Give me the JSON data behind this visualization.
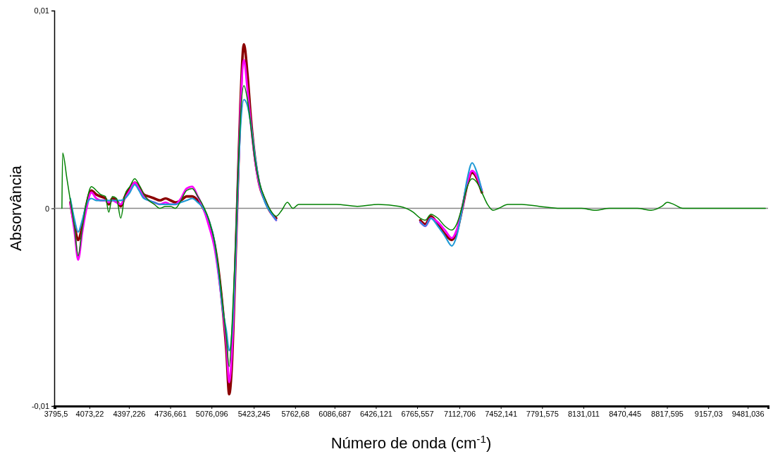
{
  "chart_data": {
    "type": "line",
    "xlabel": "Número de onda (cm$^{-1}$)",
    "ylabel": "Absorvância",
    "x": [
      3847,
      3853,
      3888,
      3916,
      3951,
      3980,
      4014,
      4049,
      4089,
      4129,
      4164,
      4204,
      4232,
      4261,
      4296,
      4330,
      4365,
      4405,
      4445,
      4480,
      4520,
      4560,
      4606,
      4652,
      4698,
      4739,
      4779,
      4825,
      4871,
      4917,
      4963,
      5009,
      5055,
      5101,
      5135,
      5170,
      5198,
      5221,
      5244,
      5267,
      5290,
      5313,
      5342,
      5371,
      5400,
      5434,
      5469,
      5515,
      5561,
      5607,
      5653,
      5699,
      5745,
      5791,
      5929,
      6101,
      6274,
      6446,
      6619,
      6734,
      6791,
      6832,
      6878,
      6935,
      6993,
      7050,
      7090,
      7136,
      7177,
      7217,
      7257,
      7297,
      7343,
      7389,
      7435,
      7510,
      7625,
      7769,
      7941,
      8114,
      8229,
      8344,
      8459,
      8574,
      8689,
      8775,
      8821,
      8873,
      8947,
      9091,
      9264,
      9436,
      9626
    ],
    "xlim": [
      3784,
      9648
    ],
    "xticks": [
      {
        "value": 3795.5,
        "label": "3795,5"
      },
      {
        "value": 4073.22,
        "label": "4073,22"
      },
      {
        "value": 4397.226,
        "label": "4397,226"
      },
      {
        "value": 4736.661,
        "label": "4736,661"
      },
      {
        "value": 5076.096,
        "label": "5076,096"
      },
      {
        "value": 5423.245,
        "label": "5423,245"
      },
      {
        "value": 5762.68,
        "label": "5762,68"
      },
      {
        "value": 6086.687,
        "label": "6086,687"
      },
      {
        "value": 6426.121,
        "label": "6426,121"
      },
      {
        "value": 6765.557,
        "label": "6765,557"
      },
      {
        "value": 7112.706,
        "label": "7112,706"
      },
      {
        "value": 7452.141,
        "label": "7452,141"
      },
      {
        "value": 7791.575,
        "label": "7791,575"
      },
      {
        "value": 8131.011,
        "label": "8131,011"
      },
      {
        "value": 8470.445,
        "label": "8470,445"
      },
      {
        "value": 8817.595,
        "label": "8817,595"
      },
      {
        "value": 9157.03,
        "label": "9157,03"
      },
      {
        "value": 9481.036,
        "label": "9481,036"
      }
    ],
    "ylim": [
      -0.01,
      0.01
    ],
    "yticks": [
      {
        "value": -0.01,
        "label": "-0,01"
      },
      {
        "value": 0,
        "label": "0"
      },
      {
        "value": 0.01,
        "label": "0,01"
      }
    ],
    "ref_lines": [
      {
        "axis": "y",
        "value": 0,
        "color": "#888888"
      }
    ],
    "marker": "none",
    "line_style": "solid",
    "series": [
      {
        "color": "#8b0000",
        "values": [
          null,
          null,
          null,
          0.0003,
          -0.0009,
          -0.0016,
          -0.0009,
          0.0002,
          0.0009,
          0.0007,
          0.0006,
          0.0005,
          0.0002,
          0.0005,
          0.0004,
          0.0001,
          0.0006,
          0.001,
          0.0013,
          0.0011,
          0.0007,
          0.0006,
          0.0005,
          0.0004,
          0.0005,
          0.0004,
          0.0003,
          0.0004,
          0.0006,
          0.0006,
          0.0004,
          0,
          -0.0007,
          -0.0018,
          -0.0032,
          -0.0052,
          -0.0072,
          -0.0094,
          -0.0078,
          -0.0038,
          0.0008,
          0.0052,
          0.0083,
          0.0068,
          0.0045,
          0.0025,
          0.0012,
          0.0004,
          -0.0002,
          -0.0005,
          null,
          null,
          null,
          null,
          null,
          null,
          null,
          null,
          null,
          null,
          -0.0006,
          -0.0008,
          -0.0004,
          -0.0008,
          -0.0013,
          -0.0016,
          -0.0012,
          0,
          0.0012,
          0.0018,
          0.0015,
          0.0008,
          null,
          null,
          null,
          null,
          null,
          null,
          null,
          null,
          null,
          null,
          null,
          null,
          null,
          null,
          null,
          null,
          null,
          null,
          null,
          null,
          null
        ]
      },
      {
        "color": "#ff00ff",
        "values": [
          null,
          null,
          null,
          0.0003,
          -0.0012,
          -0.0026,
          -0.0012,
          0,
          0.0008,
          0.0005,
          0.0004,
          0.0004,
          0.0003,
          0.0004,
          0.0003,
          0.0002,
          0.0005,
          0.0009,
          0.0013,
          0.001,
          0.0006,
          0.0004,
          0.0003,
          0.0002,
          0.0003,
          0.0002,
          0.0002,
          0.0005,
          0.001,
          0.0011,
          0.0006,
          0,
          -0.0009,
          -0.002,
          -0.0034,
          -0.0052,
          -0.0068,
          -0.0088,
          -0.0072,
          -0.0035,
          0.0008,
          0.0048,
          0.0075,
          0.006,
          0.0042,
          0.0024,
          0.0012,
          0.0004,
          -0.0002,
          -0.0006,
          null,
          null,
          null,
          null,
          null,
          null,
          null,
          null,
          null,
          null,
          -0.0007,
          -0.0009,
          -0.0005,
          -0.0007,
          -0.0011,
          -0.0015,
          -0.0011,
          0,
          0.0013,
          0.0019,
          0.0016,
          0.0009,
          null,
          null,
          null,
          null,
          null,
          null,
          null,
          null,
          null,
          null,
          null,
          null,
          null,
          null,
          null,
          null,
          null,
          null,
          null,
          null,
          null
        ]
      },
      {
        "color": "#1f9ad6",
        "values": [
          null,
          null,
          null,
          0.0005,
          -0.0006,
          -0.0012,
          -0.0006,
          0.0002,
          0.0005,
          0.0004,
          0.0004,
          0.0004,
          0.0004,
          0.0004,
          0.0004,
          0.0004,
          0.0005,
          0.0008,
          0.0012,
          0.0009,
          0.0005,
          0.0004,
          0.0003,
          0.0002,
          0.0002,
          0.0002,
          0.0002,
          0.0003,
          0.0004,
          0.0005,
          0.0003,
          0,
          -0.0006,
          -0.0017,
          -0.0033,
          -0.0052,
          -0.0062,
          -0.0072,
          -0.0063,
          -0.0034,
          0.0007,
          0.004,
          0.0055,
          0.0052,
          0.0042,
          0.0026,
          0.0013,
          0.0003,
          -0.0002,
          -0.0006,
          null,
          null,
          null,
          null,
          null,
          null,
          null,
          null,
          null,
          null,
          -0.0007,
          -0.0009,
          -0.0005,
          -0.0009,
          -0.0014,
          -0.0019,
          -0.0014,
          0,
          0.0015,
          0.0023,
          0.0018,
          0.0009,
          null,
          null,
          null,
          null,
          null,
          null,
          null,
          null,
          null,
          null,
          null,
          null,
          null,
          null,
          null,
          null,
          null,
          null,
          null,
          null,
          null
        ]
      },
      {
        "color": "#008000",
        "values": [
          0,
          0.0028,
          0.0015,
          0.0004,
          -0.001,
          -0.0024,
          -0.001,
          0.0003,
          0.0011,
          0.0009,
          0.0007,
          0.0006,
          -0.0002,
          0.0006,
          0.0005,
          -0.0005,
          0.0007,
          0.0011,
          0.0015,
          0.0012,
          0.0007,
          0.0004,
          0.0002,
          0,
          0.0001,
          0.0001,
          0,
          0.0004,
          0.0009,
          0.001,
          0.0006,
          0.0001,
          -0.0006,
          -0.0017,
          -0.0031,
          -0.005,
          -0.0066,
          -0.008,
          -0.006,
          -0.0028,
          0.0012,
          0.0046,
          0.0062,
          0.0055,
          0.0041,
          0.0024,
          0.0013,
          0.0005,
          -0.0001,
          -0.0004,
          -0.0001,
          0.0003,
          0,
          0.0002,
          0.0002,
          0.0002,
          0.0001,
          0.0002,
          0.0001,
          -0.0002,
          -0.0005,
          -0.0006,
          -0.0003,
          -0.0005,
          -0.0009,
          -0.0011,
          -0.0008,
          0.0001,
          0.0011,
          0.0015,
          0.0013,
          0.0008,
          0.0002,
          -0.0001,
          0,
          0.0002,
          0.0002,
          0.0001,
          0,
          0,
          -0.0001,
          0,
          0,
          0,
          -0.0001,
          0.0001,
          0.0003,
          0.0002,
          0,
          0,
          0,
          0,
          0
        ]
      }
    ]
  }
}
